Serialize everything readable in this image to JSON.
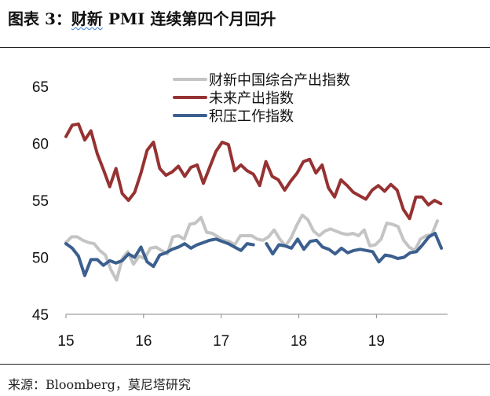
{
  "header": {
    "title_prefix": "图表 3：",
    "title_wavy": "财新",
    "title_rest": " PMI 连续第四个月回升"
  },
  "footer": {
    "source": "来源：Bloomberg，莫尼塔研究"
  },
  "chart_data": {
    "type": "line",
    "title": "",
    "xlabel": "",
    "ylabel": "",
    "ylim": [
      45,
      65
    ],
    "yticks": [
      45,
      50,
      55,
      60,
      65
    ],
    "x_tick_labels": [
      "15",
      "16",
      "17",
      "18",
      "19"
    ],
    "x_range": [
      2015,
      2019.917
    ],
    "grid": false,
    "legend_position": "top-right",
    "colors": {
      "composite": "#c4c4c4",
      "future": "#963232",
      "backlog": "#3b5f8e"
    },
    "series": [
      {
        "name": "财新中国综合产出指数",
        "key": "composite",
        "color": "#c4c4c4",
        "values": [
          51.3,
          51.8,
          51.8,
          51.5,
          51.3,
          51.2,
          50.6,
          50.2,
          48.9,
          48.0,
          49.9,
          50.5,
          49.4,
          50.1,
          49.9,
          50.8,
          50.9,
          50.6,
          50.3,
          51.8,
          51.9,
          51.6,
          52.9,
          53.0,
          53.5,
          52.2,
          52.1,
          51.8,
          51.5,
          51.4,
          51.1,
          51.9,
          51.9,
          51.9,
          51.6,
          51.5,
          51.8,
          52.4,
          51.6,
          51.0,
          51.7,
          52.8,
          53.7,
          53.3,
          52.3,
          51.9,
          52.3,
          52.5,
          52.3,
          52.1,
          52.0,
          52.1,
          51.9,
          52.4,
          51.0,
          51.1,
          51.6,
          53.0,
          52.9,
          52.7,
          51.5,
          50.9,
          50.6,
          51.6,
          51.9,
          52.0,
          53.2
        ],
        "x_start": 2015,
        "x_step": 0.0725
      },
      {
        "name": "未来产出指数",
        "key": "future",
        "color": "#963232",
        "values": [
          60.6,
          61.6,
          61.7,
          60.3,
          61.1,
          59.1,
          57.7,
          56.2,
          57.8,
          55.6,
          55.0,
          55.7,
          57.4,
          59.4,
          60.1,
          57.8,
          57.2,
          57.5,
          58.0,
          57.1,
          57.9,
          58.1,
          56.5,
          57.9,
          59.3,
          60.1,
          59.9,
          57.6,
          58.1,
          57.6,
          57.3,
          56.3,
          58.4,
          57.1,
          56.8,
          55.9,
          56.7,
          57.4,
          58.4,
          58.6,
          57.4,
          58.1,
          56.1,
          55.3,
          56.8,
          56.3,
          55.7,
          55.4,
          55.1,
          55.9,
          56.3,
          55.8,
          56.4,
          55.9,
          54.2,
          53.4,
          55.3,
          55.3,
          54.6,
          55.0,
          54.7
        ],
        "x_start": 2015,
        "x_step": 0.0805
      },
      {
        "name": "积压工作指数",
        "key": "backlog",
        "color": "#3b5f8e",
        "values": [
          51.2,
          50.8,
          50.1,
          48.4,
          49.8,
          49.8,
          49.3,
          49.7,
          49.5,
          49.7,
          50.3,
          50.0,
          50.9,
          49.6,
          49.2,
          50.2,
          50.4,
          50.7,
          50.9,
          51.2,
          50.8,
          51.1,
          51.3,
          51.5,
          51.6,
          51.4,
          51.2,
          50.9,
          50.6,
          51.2,
          51.1
        ],
        "x_start": 2015,
        "x_step": 0.0805
      },
      {
        "name": "积压工作指数",
        "key": "backlog_part2",
        "color": "#3b5f8e",
        "values": [
          51.2,
          50.3,
          51.1,
          51.0,
          50.8,
          51.6,
          50.7,
          51.4,
          51.5,
          50.9,
          50.7,
          50.3,
          50.8,
          50.4,
          50.6,
          50.7,
          50.6,
          50.5,
          49.6,
          50.2,
          50.1,
          49.9,
          50.0,
          50.4,
          50.5,
          51.1,
          51.8,
          52.1,
          50.8
        ],
        "x_start": 2017.583,
        "x_step": 0.0805
      }
    ]
  }
}
